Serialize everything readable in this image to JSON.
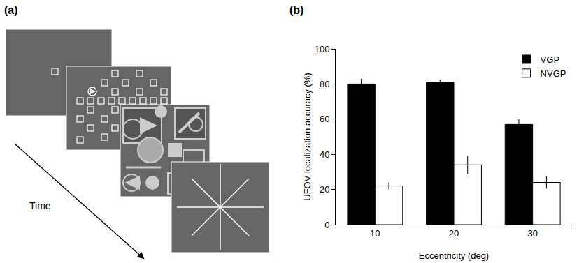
{
  "diagram": {
    "panel_label": "(a)",
    "arrow_label": "Time"
  },
  "chart_data": {
    "type": "bar",
    "annotations": [
      "(b)"
    ],
    "x_label": "Eccentricity (deg)",
    "y_label": "UFOV localization accuracy (%)",
    "categories": [
      "10",
      "20",
      "30"
    ],
    "series": [
      {
        "name": "VGP",
        "color": "#000000",
        "values": [
          80,
          81,
          57
        ],
        "errors": [
          3,
          1.5,
          3
        ]
      },
      {
        "name": "NVGP",
        "color": "#ffffff",
        "values": [
          22,
          34,
          24
        ],
        "errors": [
          2,
          5,
          3.5
        ]
      }
    ],
    "ylim": [
      0,
      100
    ],
    "yticks": [
      0,
      20,
      40,
      60,
      80,
      100
    ],
    "grid": false,
    "legend": "upper right"
  }
}
